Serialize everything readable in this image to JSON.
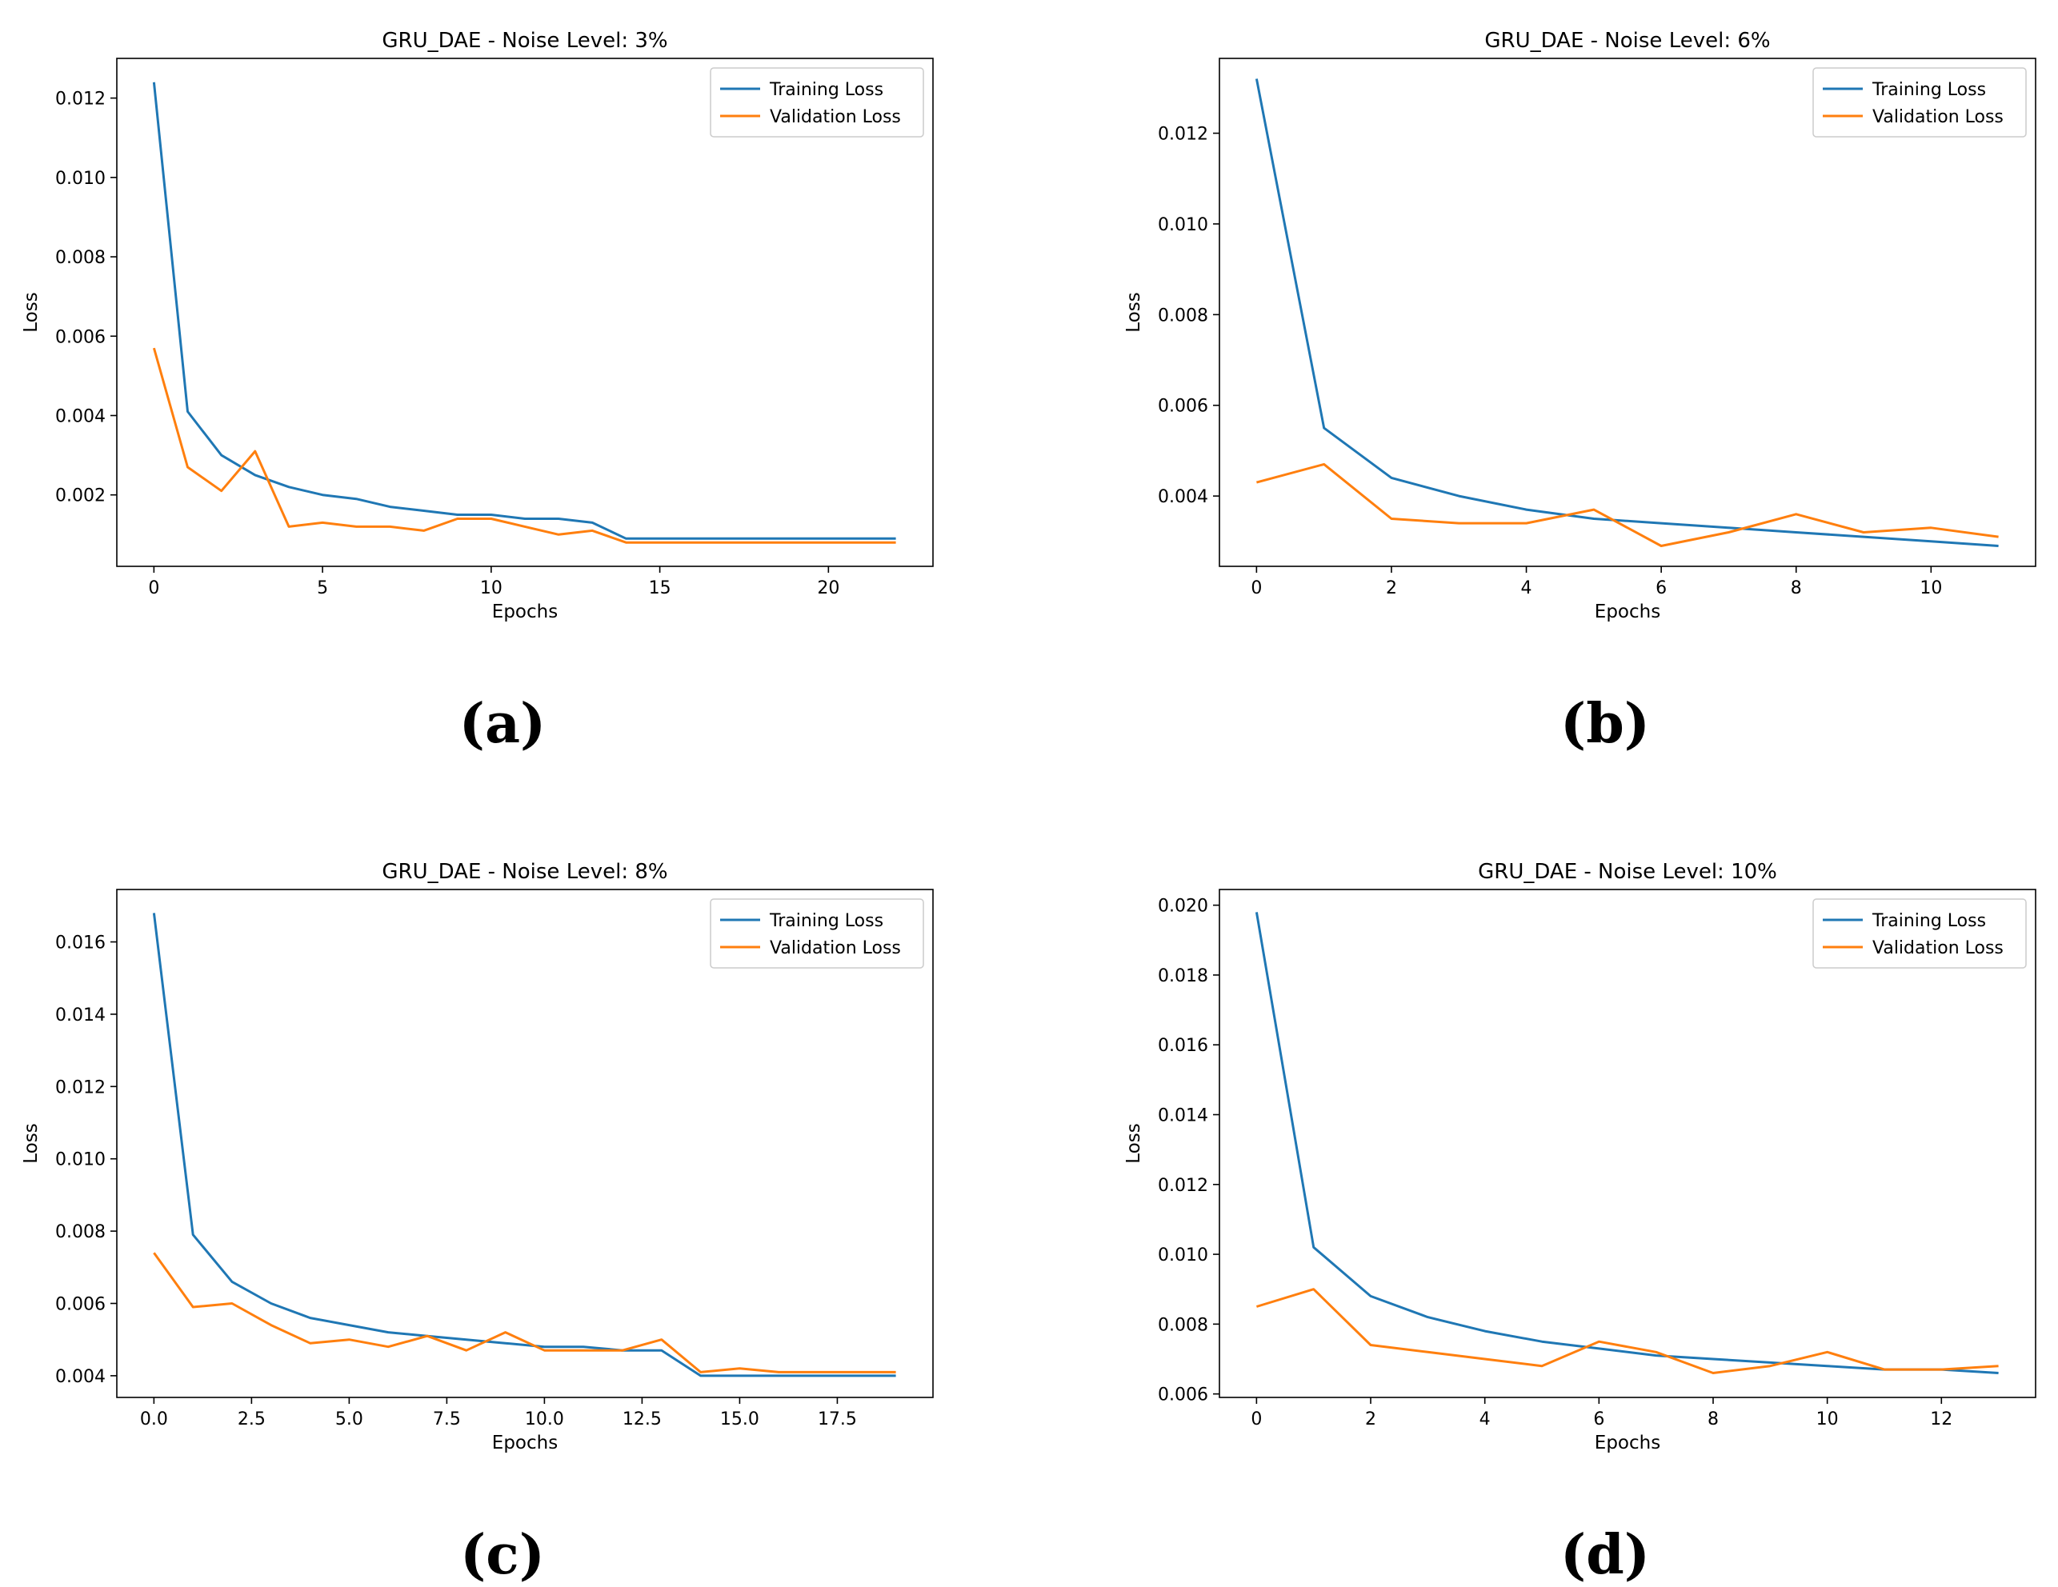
{
  "chart_data": [
    {
      "type": "line",
      "panel": "a",
      "caption": "(a)",
      "title": "GRU_DAE - Noise Level: 3%",
      "xlabel": "Epochs",
      "ylabel": "Loss",
      "xlim": [
        -1.1,
        23.1
      ],
      "ylim": [
        0.0002,
        0.013
      ],
      "xticks": [
        0,
        5,
        10,
        15,
        20
      ],
      "xtick_labels": [
        "0",
        "5",
        "10",
        "15",
        "20"
      ],
      "yticks": [
        0.002,
        0.004,
        0.006,
        0.008,
        0.01,
        0.012
      ],
      "ytick_labels": [
        "0.002",
        "0.004",
        "0.006",
        "0.008",
        "0.010",
        "0.012"
      ],
      "legend_position": "top-right",
      "x": [
        0,
        1,
        2,
        3,
        4,
        5,
        6,
        7,
        8,
        9,
        10,
        11,
        12,
        13,
        14,
        15,
        16,
        17,
        18,
        19,
        20,
        21,
        22
      ],
      "series": [
        {
          "name": "Training Loss",
          "color": "#1f77b4",
          "values": [
            0.0124,
            0.0041,
            0.003,
            0.0025,
            0.0022,
            0.002,
            0.0019,
            0.0017,
            0.0016,
            0.0015,
            0.0015,
            0.0014,
            0.0014,
            0.0013,
            0.0009,
            0.0009,
            0.0009,
            0.0009,
            0.0009,
            0.0009,
            0.0009,
            0.0009,
            0.0009
          ]
        },
        {
          "name": "Validation Loss",
          "color": "#ff7f0e",
          "values": [
            0.0057,
            0.0027,
            0.0021,
            0.0031,
            0.0012,
            0.0013,
            0.0012,
            0.0012,
            0.0011,
            0.0014,
            0.0014,
            0.0012,
            0.001,
            0.0011,
            0.0008,
            0.0008,
            0.0008,
            0.0008,
            0.0008,
            0.0008,
            0.0008,
            0.0008,
            0.0008
          ]
        }
      ]
    },
    {
      "type": "line",
      "panel": "b",
      "caption": "(b)",
      "title": "GRU_DAE - Noise Level: 6%",
      "xlabel": "Epochs",
      "ylabel": "Loss",
      "xlim": [
        -0.55,
        11.55
      ],
      "ylim": [
        0.00245,
        0.01365
      ],
      "xticks": [
        0,
        2,
        4,
        6,
        8,
        10
      ],
      "xtick_labels": [
        "0",
        "2",
        "4",
        "6",
        "8",
        "10"
      ],
      "yticks": [
        0.004,
        0.006,
        0.008,
        0.01,
        0.012
      ],
      "ytick_labels": [
        "0.004",
        "0.006",
        "0.008",
        "0.010",
        "0.012"
      ],
      "legend_position": "top-right",
      "x": [
        0,
        1,
        2,
        3,
        4,
        5,
        6,
        7,
        8,
        9,
        10,
        11
      ],
      "series": [
        {
          "name": "Training Loss",
          "color": "#1f77b4",
          "values": [
            0.0132,
            0.0055,
            0.0044,
            0.004,
            0.0037,
            0.0035,
            0.0034,
            0.0033,
            0.0032,
            0.0031,
            0.003,
            0.0029
          ]
        },
        {
          "name": "Validation Loss",
          "color": "#ff7f0e",
          "values": [
            0.0043,
            0.0047,
            0.0035,
            0.0034,
            0.0034,
            0.0037,
            0.0029,
            0.0032,
            0.0036,
            0.0032,
            0.0033,
            0.0031
          ]
        }
      ]
    },
    {
      "type": "line",
      "panel": "c",
      "caption": "(c)",
      "title": "GRU_DAE - Noise Level: 8%",
      "xlabel": "Epochs",
      "ylabel": "Loss",
      "xlim": [
        -0.95,
        19.95
      ],
      "ylim": [
        0.0034,
        0.01745
      ],
      "xticks": [
        0,
        2.5,
        5,
        7.5,
        10,
        12.5,
        15,
        17.5
      ],
      "xtick_labels": [
        "0.0",
        "2.5",
        "5.0",
        "7.5",
        "10.0",
        "12.5",
        "15.0",
        "17.5"
      ],
      "yticks": [
        0.004,
        0.006,
        0.008,
        0.01,
        0.012,
        0.014,
        0.016
      ],
      "ytick_labels": [
        "0.004",
        "0.006",
        "0.008",
        "0.010",
        "0.012",
        "0.014",
        "0.016"
      ],
      "legend_position": "top-right",
      "x": [
        0,
        1,
        2,
        3,
        4,
        5,
        6,
        7,
        8,
        9,
        10,
        11,
        12,
        13,
        14,
        15,
        16,
        17,
        18,
        19
      ],
      "series": [
        {
          "name": "Training Loss",
          "color": "#1f77b4",
          "values": [
            0.0168,
            0.0079,
            0.0066,
            0.006,
            0.0056,
            0.0054,
            0.0052,
            0.0051,
            0.005,
            0.0049,
            0.0048,
            0.0048,
            0.0047,
            0.0047,
            0.004,
            0.004,
            0.004,
            0.004,
            0.004,
            0.004
          ]
        },
        {
          "name": "Validation Loss",
          "color": "#ff7f0e",
          "values": [
            0.0074,
            0.0059,
            0.006,
            0.0054,
            0.0049,
            0.005,
            0.0048,
            0.0051,
            0.0047,
            0.0052,
            0.0047,
            0.0047,
            0.0047,
            0.005,
            0.0041,
            0.0042,
            0.0041,
            0.0041,
            0.0041,
            0.0041
          ]
        }
      ]
    },
    {
      "type": "line",
      "panel": "d",
      "caption": "(d)",
      "title": "GRU_DAE - Noise Level: 10%",
      "xlabel": "Epochs",
      "ylabel": "Loss",
      "xlim": [
        -0.65,
        13.65
      ],
      "ylim": [
        0.0059,
        0.02045
      ],
      "xticks": [
        0,
        2,
        4,
        6,
        8,
        10,
        12
      ],
      "xtick_labels": [
        "0",
        "2",
        "4",
        "6",
        "8",
        "10",
        "12"
      ],
      "yticks": [
        0.006,
        0.008,
        0.01,
        0.012,
        0.014,
        0.016,
        0.018,
        0.02
      ],
      "ytick_labels": [
        "0.006",
        "0.008",
        "0.010",
        "0.012",
        "0.014",
        "0.016",
        "0.018",
        "0.020"
      ],
      "legend_position": "top-right",
      "x": [
        0,
        1,
        2,
        3,
        4,
        5,
        6,
        7,
        8,
        9,
        10,
        11,
        12,
        13
      ],
      "series": [
        {
          "name": "Training Loss",
          "color": "#1f77b4",
          "values": [
            0.0198,
            0.0102,
            0.0088,
            0.0082,
            0.0078,
            0.0075,
            0.0073,
            0.0071,
            0.007,
            0.0069,
            0.0068,
            0.0067,
            0.0067,
            0.0066
          ]
        },
        {
          "name": "Validation Loss",
          "color": "#ff7f0e",
          "values": [
            0.0085,
            0.009,
            0.0074,
            0.0072,
            0.007,
            0.0068,
            0.0075,
            0.0072,
            0.0066,
            0.0068,
            0.0072,
            0.0067,
            0.0067,
            0.0068
          ]
        }
      ]
    }
  ]
}
